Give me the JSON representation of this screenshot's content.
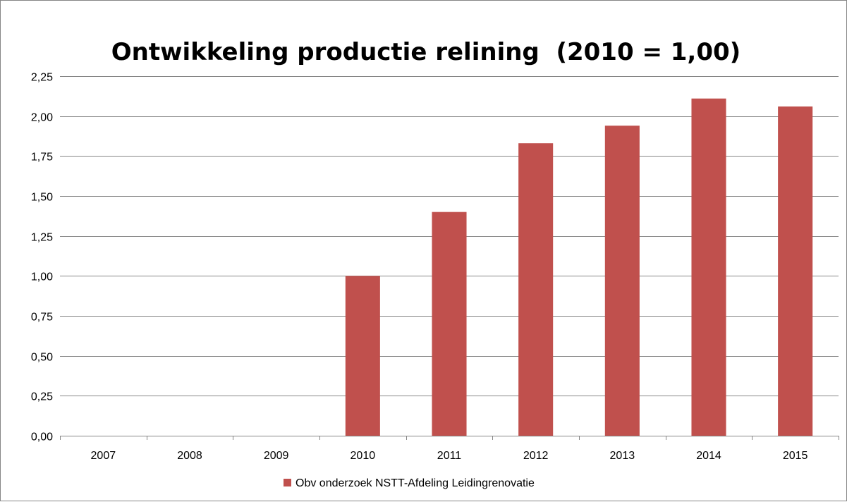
{
  "chart_data": {
    "type": "bar",
    "title": "Ontwikkeling productie relining  (2010 = 1,00)",
    "xlabel": "",
    "ylabel": "",
    "categories": [
      "2007",
      "2008",
      "2009",
      "2010",
      "2011",
      "2012",
      "2013",
      "2014",
      "2015"
    ],
    "series": [
      {
        "name": "Obv onderzoek NSTT-Afdeling Leidingrenovatie",
        "values": [
          null,
          null,
          null,
          1.0,
          1.4,
          1.83,
          1.94,
          2.11,
          2.06
        ],
        "color": "#c0504d"
      }
    ],
    "ylim": [
      0,
      2.25
    ],
    "yticks": [
      0,
      0.25,
      0.5,
      0.75,
      1.0,
      1.25,
      1.5,
      1.75,
      2.0,
      2.25
    ],
    "ytick_labels": [
      "0,00",
      "0,25",
      "0,50",
      "0,75",
      "1,00",
      "1,25",
      "1,50",
      "1,75",
      "2,00",
      "2,25"
    ],
    "grid": true,
    "legend_position": "bottom",
    "colors": {
      "gridline": "#868686",
      "axis": "#868686"
    }
  }
}
